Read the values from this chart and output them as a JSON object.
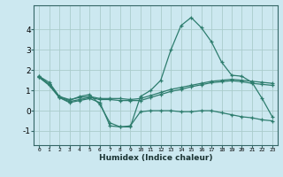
{
  "title": "",
  "xlabel": "Humidex (Indice chaleur)",
  "ylabel": "",
  "bg_color": "#cce8f0",
  "line_color": "#2e7d6e",
  "grid_color": "#aacccc",
  "x_ticks": [
    0,
    1,
    2,
    3,
    4,
    5,
    6,
    7,
    8,
    9,
    10,
    11,
    12,
    13,
    14,
    15,
    16,
    17,
    18,
    19,
    20,
    21,
    22,
    23
  ],
  "ylim": [
    -1.7,
    5.2
  ],
  "xlim": [
    -0.5,
    23.5
  ],
  "series": [
    {
      "x": [
        0,
        1,
        2,
        3,
        4,
        5,
        6,
        7,
        8,
        9,
        10,
        11,
        12,
        13,
        14,
        15,
        16,
        17,
        18,
        19,
        20,
        21,
        22,
        23
      ],
      "y": [
        1.7,
        1.4,
        0.7,
        0.5,
        0.7,
        0.8,
        0.3,
        -0.6,
        -0.8,
        -0.8,
        0.7,
        1.0,
        1.5,
        3.0,
        4.2,
        4.6,
        4.1,
        3.4,
        2.4,
        1.75,
        1.7,
        1.4,
        0.6,
        -0.3
      ]
    },
    {
      "x": [
        0,
        1,
        2,
        3,
        4,
        5,
        6,
        7,
        8,
        9,
        10,
        11,
        12,
        13,
        14,
        15,
        16,
        17,
        18,
        19,
        20,
        21,
        22,
        23
      ],
      "y": [
        1.7,
        1.3,
        0.7,
        0.55,
        0.65,
        0.7,
        0.6,
        0.6,
        0.6,
        0.55,
        0.6,
        0.75,
        0.9,
        1.05,
        1.15,
        1.25,
        1.35,
        1.45,
        1.5,
        1.55,
        1.5,
        1.45,
        1.4,
        1.35
      ]
    },
    {
      "x": [
        0,
        1,
        2,
        3,
        4,
        5,
        6,
        7,
        8,
        9,
        10,
        11,
        12,
        13,
        14,
        15,
        16,
        17,
        18,
        19,
        20,
        21,
        22,
        23
      ],
      "y": [
        1.65,
        1.25,
        0.65,
        0.45,
        0.55,
        0.65,
        0.55,
        0.55,
        0.5,
        0.5,
        0.5,
        0.65,
        0.8,
        0.95,
        1.05,
        1.18,
        1.28,
        1.38,
        1.43,
        1.48,
        1.43,
        1.35,
        1.3,
        1.25
      ]
    },
    {
      "x": [
        0,
        1,
        2,
        3,
        4,
        5,
        6,
        7,
        8,
        9,
        10,
        11,
        12,
        13,
        14,
        15,
        16,
        17,
        18,
        19,
        20,
        21,
        22,
        23
      ],
      "y": [
        1.65,
        1.3,
        0.65,
        0.4,
        0.5,
        0.6,
        0.4,
        -0.75,
        -0.8,
        -0.75,
        -0.05,
        0.0,
        0.0,
        0.0,
        -0.05,
        -0.05,
        0.0,
        0.0,
        -0.1,
        -0.2,
        -0.3,
        -0.35,
        -0.45,
        -0.5
      ]
    }
  ]
}
